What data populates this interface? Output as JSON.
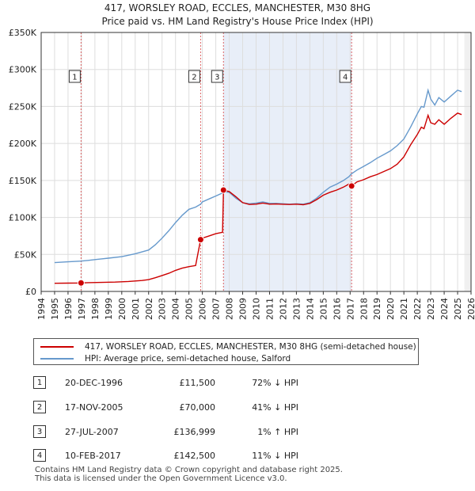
{
  "title_line1": "417, WORSLEY ROAD, ECCLES, MANCHESTER, M30 8HG",
  "title_line2": "Price paid vs. HM Land Registry's House Price Index (HPI)",
  "legend": {
    "property": "417, WORSLEY ROAD, ECCLES, MANCHESTER, M30 8HG (semi-detached house)",
    "hpi": "HPI: Average price, semi-detached house, Salford"
  },
  "sales": [
    {
      "n": "1",
      "date": "20-DEC-1996",
      "price": "£11,500",
      "hpi": "72% ↓ HPI"
    },
    {
      "n": "2",
      "date": "17-NOV-2005",
      "price": "£70,000",
      "hpi": "41% ↓ HPI"
    },
    {
      "n": "3",
      "date": "27-JUL-2007",
      "price": "£136,999",
      "hpi": "1% ↑ HPI"
    },
    {
      "n": "4",
      "date": "10-FEB-2017",
      "price": "£142,500",
      "hpi": "11% ↓ HPI"
    }
  ],
  "footer_line1": "Contains HM Land Registry data © Crown copyright and database right 2025.",
  "footer_line2": "This data is licensed under the Open Government Licence v3.0.",
  "colors": {
    "property": "#cc0000",
    "hpi": "#6699cc",
    "grid": "#dddddd",
    "shade": "#e8eef8",
    "marker_line": "#cc0000"
  },
  "chart_data": {
    "type": "line",
    "xlim": [
      1994,
      2026
    ],
    "ylim": [
      0,
      350000
    ],
    "x_ticks": [
      1994,
      1995,
      1996,
      1997,
      1998,
      1999,
      2000,
      2001,
      2002,
      2003,
      2004,
      2005,
      2006,
      2007,
      2008,
      2009,
      2010,
      2011,
      2012,
      2013,
      2014,
      2015,
      2016,
      2017,
      2018,
      2019,
      2020,
      2021,
      2022,
      2023,
      2024,
      2025,
      2026
    ],
    "y_ticks": [
      0,
      50000,
      100000,
      150000,
      200000,
      250000,
      300000,
      350000
    ],
    "y_tick_labels": [
      "£0",
      "£50K",
      "£100K",
      "£150K",
      "£200K",
      "£250K",
      "£300K",
      "£350K"
    ],
    "data_start": 1995.0,
    "data_end": 2025.5,
    "series": [
      {
        "name": "417, WORSLEY ROAD, ECCLES, MANCHESTER, M30 8HG (semi-detached house)",
        "x": [
          1995.0,
          1996.0,
          1996.97,
          1997.5,
          1998.5,
          1999.5,
          2000.5,
          2001.5,
          2002.0,
          2002.5,
          2003.0,
          2003.5,
          2004.0,
          2004.5,
          2005.0,
          2005.5,
          2005.87,
          2006.0,
          2006.5,
          2007.0,
          2007.5,
          2007.57,
          2008.0,
          2008.5,
          2009.0,
          2009.5,
          2010.0,
          2010.5,
          2011.0,
          2011.5,
          2012.0,
          2012.5,
          2013.0,
          2013.5,
          2014.0,
          2014.5,
          2015.0,
          2015.5,
          2016.0,
          2016.5,
          2016.9,
          2017.11,
          2017.5,
          2018.0,
          2018.5,
          2019.0,
          2019.5,
          2020.0,
          2020.5,
          2021.0,
          2021.5,
          2022.0,
          2022.3,
          2022.5,
          2022.8,
          2023.0,
          2023.3,
          2023.6,
          2024.0,
          2024.5,
          2025.0,
          2025.3
        ],
        "y": [
          11000,
          11200,
          11500,
          11900,
          12200,
          12600,
          13500,
          14800,
          16000,
          18500,
          21500,
          24500,
          28500,
          31500,
          33500,
          35000,
          70000,
          72000,
          75000,
          78000,
          80000,
          136999,
          135000,
          128000,
          120000,
          117500,
          118000,
          119500,
          118000,
          118200,
          117800,
          117500,
          118000,
          117200,
          119000,
          124000,
          130000,
          134000,
          137000,
          141000,
          145000,
          142500,
          148000,
          151000,
          155000,
          158000,
          162000,
          166000,
          172000,
          182000,
          198000,
          212000,
          222000,
          220000,
          238000,
          228000,
          226000,
          232000,
          226000,
          234000,
          241000,
          239000
        ]
      },
      {
        "name": "HPI: Average price, semi-detached house, Salford",
        "x": [
          1995.0,
          1996.0,
          1996.97,
          1997.5,
          1998.0,
          1999.0,
          2000.0,
          2001.0,
          2002.0,
          2002.5,
          2003.0,
          2003.5,
          2004.0,
          2004.5,
          2005.0,
          2005.5,
          2005.87,
          2006.0,
          2006.5,
          2007.0,
          2007.5,
          2007.57,
          2008.0,
          2008.5,
          2009.0,
          2009.5,
          2010.0,
          2010.5,
          2011.0,
          2011.5,
          2012.0,
          2012.5,
          2013.0,
          2013.5,
          2014.0,
          2014.5,
          2015.0,
          2015.5,
          2016.0,
          2016.5,
          2016.9,
          2017.11,
          2017.5,
          2018.0,
          2018.5,
          2019.0,
          2019.5,
          2020.0,
          2020.5,
          2021.0,
          2021.5,
          2022.0,
          2022.3,
          2022.5,
          2022.8,
          2023.0,
          2023.3,
          2023.6,
          2024.0,
          2024.5,
          2025.0,
          2025.3
        ],
        "y": [
          39000,
          40000,
          41000,
          42000,
          43000,
          45000,
          47000,
          51000,
          56000,
          63000,
          72000,
          82000,
          93000,
          103000,
          111000,
          114000,
          118000,
          121000,
          125000,
          129000,
          133000,
          134500,
          134000,
          126000,
          120000,
          118500,
          119500,
          121000,
          119000,
          119000,
          118500,
          118000,
          118500,
          118000,
          120000,
          126000,
          134000,
          141000,
          145000,
          150000,
          155000,
          159000,
          164000,
          169000,
          174000,
          180000,
          185000,
          190000,
          197000,
          206000,
          222000,
          240000,
          250000,
          249000,
          272000,
          260000,
          252000,
          262000,
          256000,
          264000,
          272000,
          270000
        ]
      }
    ],
    "markers": [
      {
        "label": "1",
        "x": 1996.97,
        "y": 11500
      },
      {
        "label": "2",
        "x": 2005.87,
        "y": 70000
      },
      {
        "label": "3",
        "x": 2007.57,
        "y": 136999
      },
      {
        "label": "4",
        "x": 2017.11,
        "y": 142500
      }
    ]
  }
}
